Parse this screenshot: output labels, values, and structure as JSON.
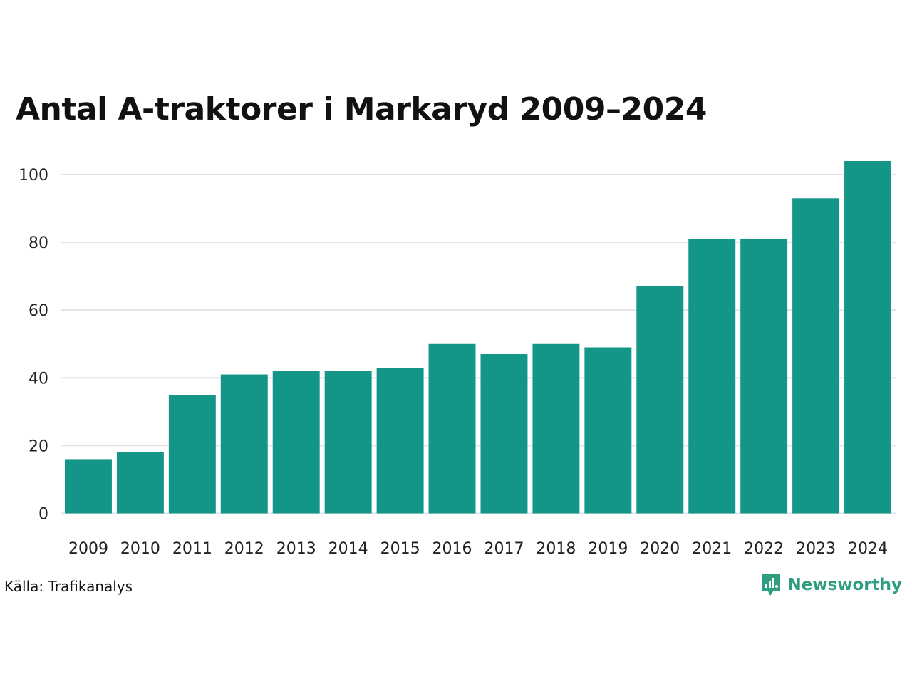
{
  "chart_data": {
    "type": "bar",
    "title": "Antal A-traktorer i Markaryd 2009–2024",
    "categories": [
      "2009",
      "2010",
      "2011",
      "2012",
      "2013",
      "2014",
      "2015",
      "2016",
      "2017",
      "2018",
      "2019",
      "2020",
      "2021",
      "2022",
      "2023",
      "2024"
    ],
    "values": [
      16,
      18,
      35,
      41,
      42,
      42,
      43,
      50,
      47,
      50,
      49,
      67,
      81,
      81,
      93,
      104
    ],
    "yticks": [
      0,
      20,
      40,
      60,
      80,
      100
    ],
    "ylim": [
      0,
      104
    ],
    "xlabel": "",
    "ylabel": "",
    "grid": true,
    "bar_color": "#139688",
    "grid_color": "#e4e1e6"
  },
  "footer": {
    "source": "Källa: Trafikanalys",
    "brand": "Newsworthy",
    "brand_color": "#2f9e80",
    "brand_icon": "newsworthy-logo-icon"
  }
}
